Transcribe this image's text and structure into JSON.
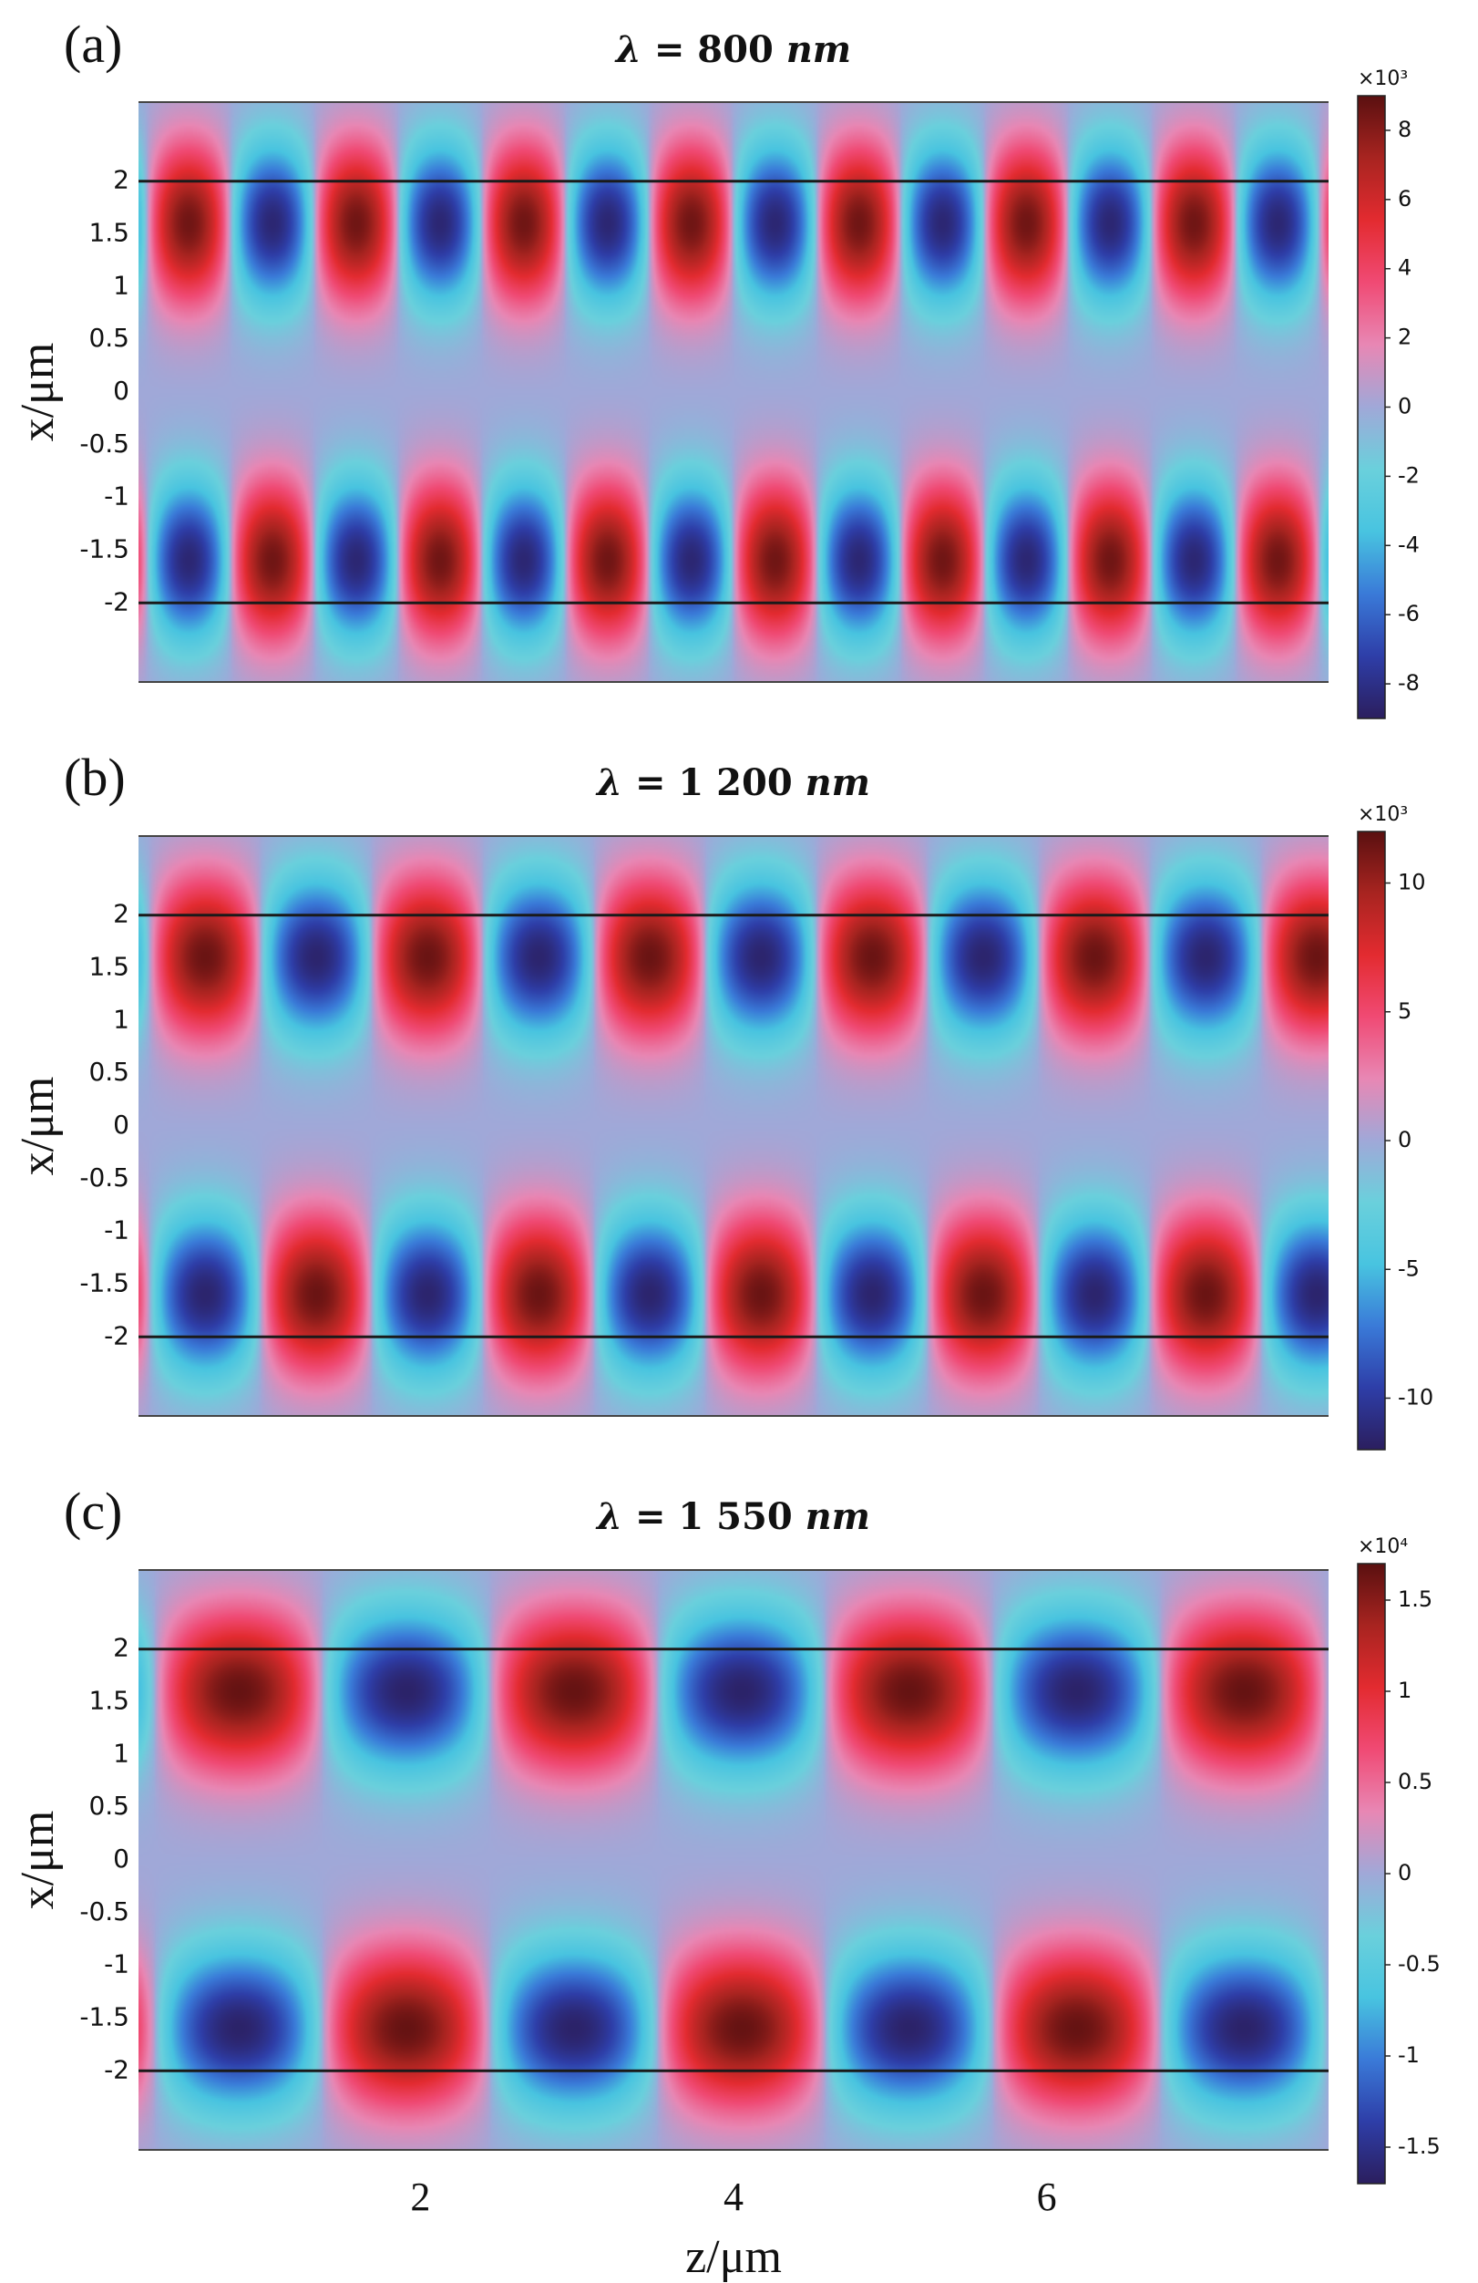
{
  "chart_data": [
    {
      "type": "heatmap",
      "panel": "(a)",
      "title": "λ = 800 nm",
      "title_symbol": "λ =",
      "title_value": "800",
      "title_unit": "nm",
      "ylabel": "x/μm",
      "xlabel": "",
      "yticks": [
        "2",
        "1.5",
        "1",
        "0.5",
        "0",
        "-0.5",
        "-1",
        "-1.5",
        "-2"
      ],
      "ytick_values": [
        2,
        1.5,
        1,
        0.5,
        0,
        -0.5,
        -1,
        -1.5,
        -2
      ],
      "ylim": [
        -2.75,
        2.75
      ],
      "xlim": [
        0.2,
        7.8
      ],
      "interface_lines_x": [
        2,
        -2
      ],
      "field_period_um": 1.07,
      "lobe_peak_magnitude": 8.5,
      "colorbar": {
        "multiplier": "×10³",
        "min": -9,
        "max": 9,
        "ticks": [
          "8",
          "6",
          "4",
          "2",
          "0",
          "-2",
          "-4",
          "-6",
          "-8"
        ],
        "tick_values": [
          8,
          6,
          4,
          2,
          0,
          -2,
          -4,
          -6,
          -8
        ]
      }
    },
    {
      "type": "heatmap",
      "panel": "(b)",
      "title": "λ = 1 200 nm",
      "title_symbol": "λ =",
      "title_value": "1 200",
      "title_unit": "nm",
      "ylabel": "x/μm",
      "xlabel": "",
      "yticks": [
        "2",
        "1.5",
        "1",
        "0.5",
        "0",
        "-0.5",
        "-1",
        "-1.5",
        "-2"
      ],
      "ytick_values": [
        2,
        1.5,
        1,
        0.5,
        0,
        -0.5,
        -1,
        -1.5,
        -2
      ],
      "ylim": [
        -2.75,
        2.75
      ],
      "xlim": [
        0.2,
        7.8
      ],
      "interface_lines_x": [
        2,
        -2
      ],
      "field_period_um": 1.42,
      "lobe_peak_magnitude": 11.5,
      "colorbar": {
        "multiplier": "×10³",
        "min": -12,
        "max": 12,
        "ticks": [
          "10",
          "5",
          "0",
          "-5",
          "-10"
        ],
        "tick_values": [
          10,
          5,
          0,
          -5,
          -10
        ]
      }
    },
    {
      "type": "heatmap",
      "panel": "(c)",
      "title": "λ = 1 550 nm",
      "title_symbol": "λ =",
      "title_value": "1 550",
      "title_unit": "nm",
      "ylabel": "x/μm",
      "xlabel": "z/μm",
      "yticks": [
        "2",
        "1.5",
        "1",
        "0.5",
        "0",
        "-0.5",
        "-1",
        "-1.5",
        "-2"
      ],
      "ytick_values": [
        2,
        1.5,
        1,
        0.5,
        0,
        -0.5,
        -1,
        -1.5,
        -2
      ],
      "xticks": [
        "2",
        "4",
        "6"
      ],
      "xtick_values": [
        2,
        4,
        6
      ],
      "ylim": [
        -2.75,
        2.75
      ],
      "xlim": [
        0.2,
        7.8
      ],
      "interface_lines_x": [
        2,
        -2
      ],
      "field_period_um": 2.14,
      "lobe_peak_magnitude": 1.65,
      "colorbar": {
        "multiplier": "×10⁴",
        "min": -1.7,
        "max": 1.7,
        "ticks": [
          "1.5",
          "1",
          "0.5",
          "0",
          "-0.5",
          "-1",
          "-1.5"
        ],
        "tick_values": [
          1.5,
          1,
          0.5,
          0,
          -0.5,
          -1,
          -1.5
        ]
      }
    }
  ],
  "colors": {
    "colormap": [
      "#2b1e5e",
      "#2e3ea8",
      "#3a7ad8",
      "#48c4e0",
      "#6ad0dc",
      "#a0a8d8",
      "#e887b4",
      "#f04a74",
      "#e32b30",
      "#a82420",
      "#5a1010"
    ],
    "interface_line": "#1a1a1a",
    "background_field": "#5ccbdd"
  }
}
